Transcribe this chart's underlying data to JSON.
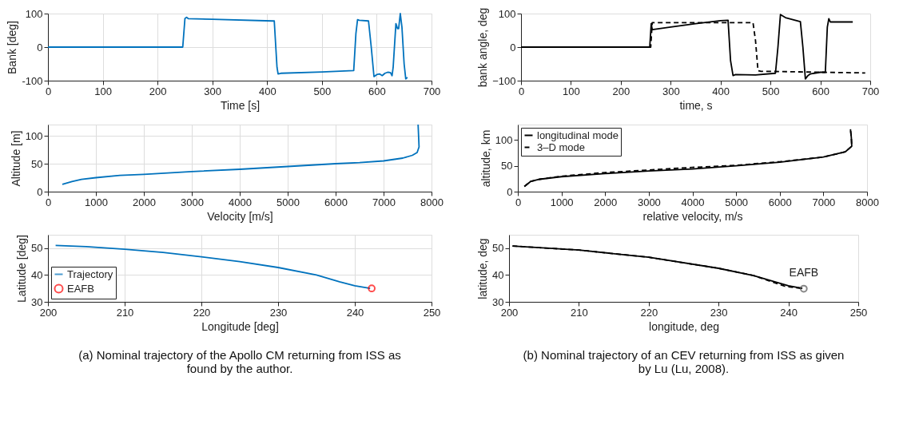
{
  "chart_data": [
    {
      "type": "line",
      "xlabel": "Time [s]",
      "ylabel": "Bank [deg]",
      "xlim": [
        0,
        700
      ],
      "xticks": [
        0,
        100,
        200,
        300,
        400,
        500,
        600,
        700
      ],
      "ylim": [
        -100,
        100
      ],
      "yticks": [
        -100,
        0,
        100
      ],
      "grid": true,
      "legend": false,
      "series": [
        {
          "color": "#0072bd",
          "line_style": "solid",
          "x": [
            0,
            246,
            250,
            253,
            256,
            300,
            410,
            413,
            418,
            420,
            425,
            500,
            558,
            562,
            565,
            568,
            585,
            590,
            595,
            600,
            605,
            610,
            615,
            620,
            625,
            628,
            630,
            635,
            638,
            640,
            643,
            646,
            650,
            653,
            656
          ],
          "values": [
            0,
            0,
            85,
            89,
            85,
            83,
            78,
            78,
            -60,
            -80,
            -78,
            -74,
            -70,
            40,
            82,
            80,
            78,
            0,
            -88,
            -82,
            -80,
            -85,
            -78,
            -75,
            -76,
            -85,
            -60,
            70,
            55,
            55,
            100,
            60,
            -50,
            -95,
            -90
          ]
        }
      ]
    },
    {
      "type": "line",
      "xlabel": "time, s",
      "ylabel": "bank angle, deg",
      "xlim": [
        0,
        700
      ],
      "xticks": [
        0,
        100,
        200,
        300,
        400,
        500,
        600,
        700
      ],
      "ylim": [
        -100,
        100
      ],
      "yticks": [
        {
          "value": -100,
          "label": "−100"
        },
        0,
        100
      ],
      "legend": false,
      "series": [
        {
          "color": "#000000",
          "line_style": "solid",
          "x": [
            0,
            258,
            261,
            263,
            300,
            350,
            400,
            415,
            420,
            425,
            430,
            470,
            510,
            515,
            520,
            530,
            560,
            565,
            570,
            575,
            580,
            600,
            610,
            614,
            617,
            620,
            665
          ],
          "values": [
            0,
            0,
            70,
            52,
            60,
            70,
            79,
            80,
            -40,
            -85,
            -82,
            -83,
            -78,
            0,
            97,
            88,
            76,
            0,
            -95,
            -85,
            -80,
            -75,
            -75,
            60,
            85,
            75,
            75
          ]
        },
        {
          "color": "#000000",
          "line_style": "dashed",
          "x": [
            0,
            260,
            263,
            465,
            470,
            475,
            480,
            690
          ],
          "values": [
            0,
            0,
            73,
            73,
            20,
            -70,
            -72,
            -77
          ]
        }
      ]
    },
    {
      "type": "line",
      "xlabel": "Velocity [m/s]",
      "ylabel": "Altitude [m]",
      "xlim": [
        0,
        8000
      ],
      "xticks": [
        0,
        1000,
        2000,
        3000,
        4000,
        5000,
        6000,
        7000,
        8000
      ],
      "ylim": [
        0,
        120
      ],
      "yticks": [
        0,
        50,
        100
      ],
      "grid": true,
      "legend": false,
      "series": [
        {
          "color": "#0072bd",
          "line_style": "solid",
          "x": [
            300,
            500,
            700,
            1000,
            1500,
            2000,
            3000,
            4000,
            5000,
            6000,
            6500,
            7000,
            7400,
            7600,
            7700,
            7740,
            7730,
            7720
          ],
          "values": [
            13,
            18,
            22,
            25,
            29,
            31,
            36,
            40,
            45,
            50,
            52,
            55,
            60,
            65,
            70,
            80,
            100,
            120
          ]
        }
      ]
    },
    {
      "type": "line",
      "xlabel": "relative velocity, m/s",
      "ylabel": "altitude, km",
      "xlim": [
        0,
        8000
      ],
      "xticks": [
        0,
        1000,
        2000,
        3000,
        4000,
        5000,
        6000,
        7000,
        8000
      ],
      "ylim": [
        0,
        130
      ],
      "yticks": [
        0,
        50,
        100
      ],
      "legend": "top left",
      "series": [
        {
          "name": "longitudinal mode",
          "color": "#000000",
          "line_style": "solid",
          "x": [
            150,
            300,
            500,
            1000,
            2000,
            3000,
            4000,
            5000,
            6000,
            7000,
            7500,
            7650,
            7640,
            7620
          ],
          "values": [
            10,
            20,
            24,
            29,
            35,
            40,
            44,
            50,
            57,
            67,
            77,
            88,
            105,
            121
          ]
        },
        {
          "name": "3–D mode",
          "color": "#000000",
          "line_style": "dashed",
          "x": [
            150,
            300,
            500,
            1000,
            2000,
            3000,
            4000,
            5000,
            6000,
            7000,
            7500,
            7650,
            7640,
            7620
          ],
          "values": [
            10,
            20,
            24,
            30,
            37,
            42,
            47,
            51,
            58,
            67,
            77,
            88,
            105,
            121
          ]
        }
      ]
    },
    {
      "type": "line",
      "xlabel": "Longitude [deg]",
      "ylabel": "Latitude [deg]",
      "xlim": [
        200,
        250
      ],
      "xticks": [
        200,
        210,
        220,
        230,
        240,
        250
      ],
      "ylim": [
        30,
        55
      ],
      "yticks": [
        30,
        40,
        50
      ],
      "grid": true,
      "legend": "bottom left",
      "annotations": [
        "(a) Nominal trajectory of the Apollo CM returning from ISS as found by the author."
      ],
      "series": [
        {
          "name": "Trajectory",
          "color": "#0072bd",
          "line_style": "solid",
          "x": [
            201,
            205,
            210,
            215,
            220,
            225,
            230,
            235,
            238,
            240,
            242
          ],
          "values": [
            51,
            50.6,
            49.6,
            48.4,
            46.8,
            45,
            42.8,
            40,
            37.5,
            36,
            35
          ]
        },
        {
          "name": "EAFB",
          "type": "scatter",
          "marker": "circle",
          "color": "#ff0000",
          "x": [
            242.2
          ],
          "values": [
            35
          ]
        }
      ]
    },
    {
      "type": "line",
      "xlabel": "longitude, deg",
      "ylabel": "latitude, deg",
      "xlim": [
        200,
        250
      ],
      "xticks": [
        200,
        210,
        220,
        230,
        240,
        250
      ],
      "ylim": [
        30,
        55
      ],
      "yticks": [
        30,
        40,
        50
      ],
      "legend": false,
      "annotations": [
        {
          "text": "EAFB",
          "x": 242.2,
          "y": 34.9
        },
        "(b) Nominal trajectory of an CEV returning from ISS as given by Lu (Lu, 2008)."
      ],
      "series": [
        {
          "color": "#000000",
          "line_style": "solid",
          "x": [
            200.5,
            210,
            220,
            230,
            235,
            240,
            242
          ],
          "values": [
            50.8,
            49.3,
            46.6,
            42.5,
            39.8,
            36,
            35
          ]
        },
        {
          "color": "#000000",
          "line_style": "dashed",
          "x": [
            200.5,
            210,
            220,
            230,
            235,
            239.5,
            242
          ],
          "values": [
            50.8,
            49.3,
            46.6,
            42.5,
            39.8,
            35.8,
            35
          ]
        },
        {
          "type": "scatter",
          "marker": "circle",
          "color": "#555555",
          "x": [
            242.2
          ],
          "values": [
            34.9
          ]
        }
      ]
    }
  ]
}
